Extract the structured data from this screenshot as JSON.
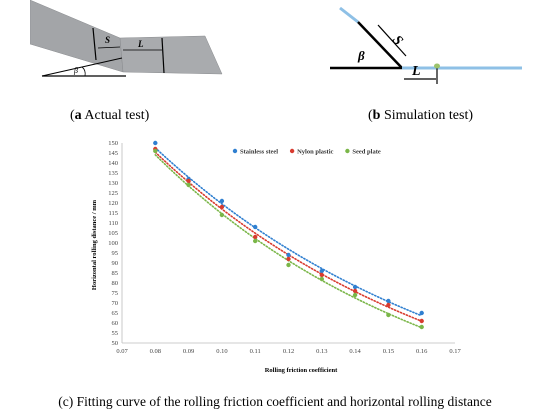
{
  "panel_a": {
    "label_s": "S",
    "label_l": "L",
    "label_beta": "β",
    "caption_letter": "a",
    "caption_text": " Actual test"
  },
  "panel_b": {
    "label_s": "S",
    "label_l": "L",
    "label_beta": "β",
    "caption_letter": "b",
    "caption_text": " Simulation test"
  },
  "panel_c": {
    "caption": "(c) Fitting curve of the rolling friction coefficient and horizontal rolling distance"
  },
  "chart_data": {
    "type": "scatter",
    "xlabel": "Rolling friction coefficient",
    "ylabel": "Horizontal rolling distance / mm",
    "xlim": [
      0.07,
      0.17
    ],
    "ylim": [
      50,
      150
    ],
    "xticks": [
      "0.07",
      "0.08",
      "0.09",
      "0.10",
      "0.11",
      "0.12",
      "0.13",
      "0.14",
      "0.15",
      "0.16",
      "0.17"
    ],
    "yticks": [
      "50",
      "55",
      "60",
      "65",
      "70",
      "75",
      "80",
      "85",
      "90",
      "95",
      "100",
      "105",
      "110",
      "115",
      "120",
      "125",
      "130",
      "135",
      "140",
      "145",
      "150"
    ],
    "grid": false,
    "legend_position": "top-right",
    "trendline": "dotted",
    "x": [
      0.08,
      0.09,
      0.1,
      0.11,
      0.12,
      0.13,
      0.14,
      0.15,
      0.16
    ],
    "series": [
      {
        "name": "Stainless steel",
        "color": "#2f7fd0",
        "values": [
          150,
          132,
          121,
          108,
          94,
          86,
          78,
          71,
          65
        ]
      },
      {
        "name": "Nylon plastic",
        "color": "#d83b2f",
        "values": [
          147,
          131,
          118,
          103,
          92,
          84,
          76,
          69,
          61
        ]
      },
      {
        "name": "Seed plate",
        "color": "#7ab648",
        "values": [
          146,
          129,
          114,
          101,
          89,
          82,
          74,
          64,
          58
        ]
      }
    ]
  }
}
